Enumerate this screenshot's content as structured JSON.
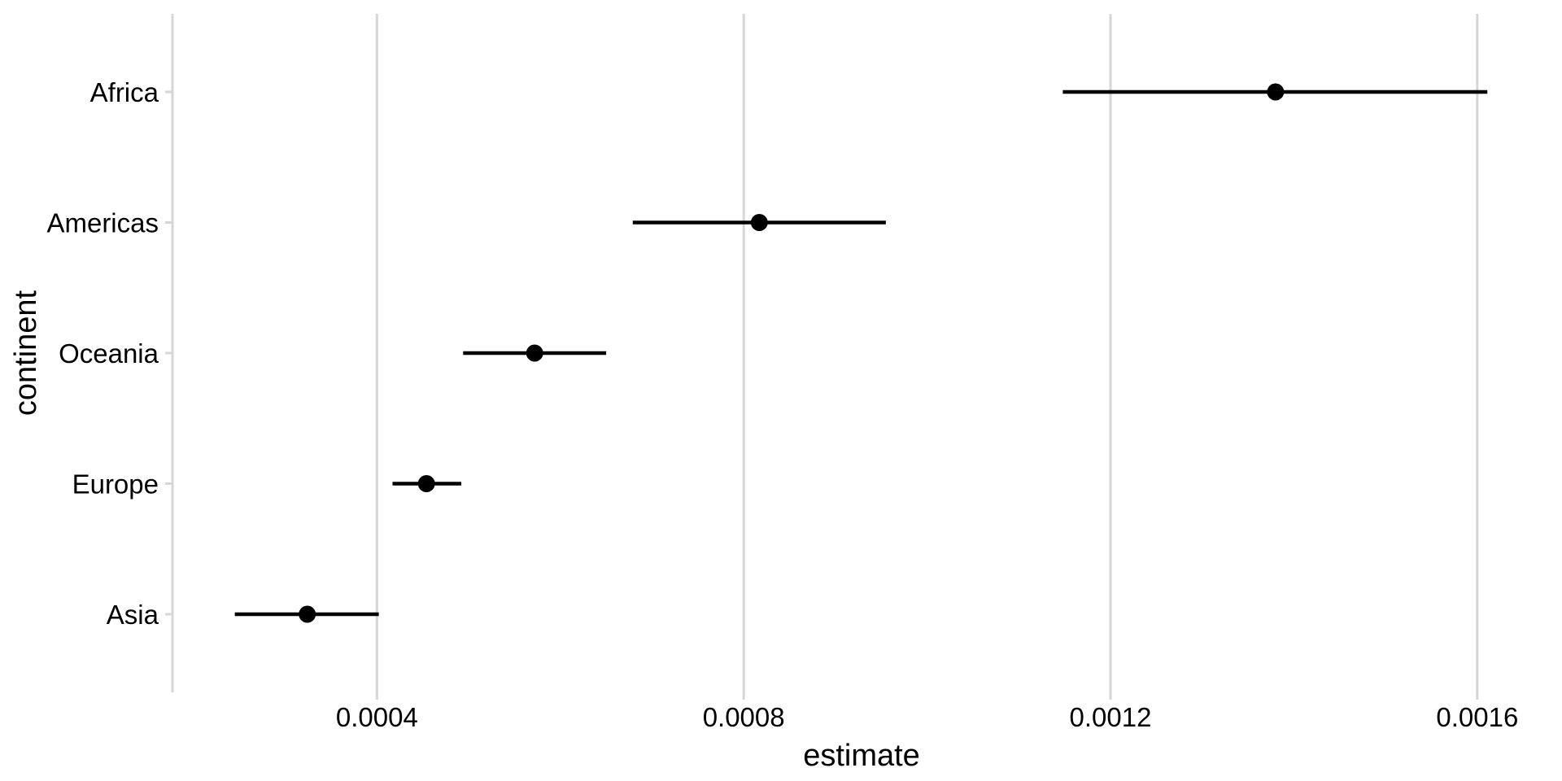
{
  "figure": {
    "background": "#ffffff"
  },
  "chart_data": {
    "type": "scatter",
    "subtype": "pointrange (dot with horizontal confidence-interval line per category)",
    "title": "",
    "xlabel": "estimate",
    "ylabel": "continent",
    "categories": [
      "Africa",
      "Americas",
      "Oceania",
      "Europe",
      "Asia"
    ],
    "series": [
      {
        "name": "estimate",
        "values": [
          0.00138,
          0.000817,
          0.000572,
          0.000454,
          0.000324
        ]
      },
      {
        "name": "conf_low",
        "values": [
          0.001148,
          0.000679,
          0.000494,
          0.000417,
          0.000245
        ]
      },
      {
        "name": "conf_high",
        "values": [
          0.001611,
          0.000955,
          0.00065,
          0.000492,
          0.000402
        ]
      }
    ],
    "xlim": [
      0.000177,
      0.00168
    ],
    "x_ticks": [
      0.0004,
      0.0008,
      0.0012,
      0.0016
    ],
    "x_tick_labels": [
      "0.0004",
      "0.0008",
      "0.0012",
      "0.0016"
    ],
    "grid": "vertical-gridlines-only",
    "legend": "none",
    "colors": {
      "point": "#000000",
      "range_line": "#000000",
      "gridline": "#d6d6d6",
      "axis_line": "#d6d6d6",
      "tick_mark": "#d6d6d6",
      "text": "#000000",
      "background": "#ffffff"
    }
  }
}
